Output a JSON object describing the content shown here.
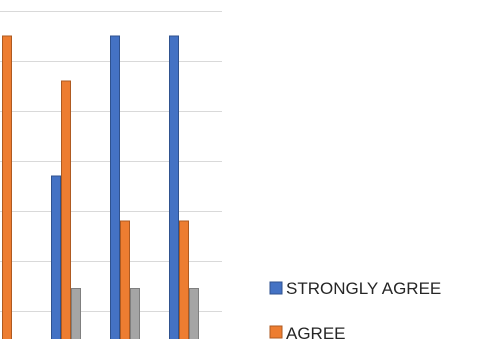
{
  "chart_data": {
    "type": "bar",
    "categories": [
      "",
      "",
      "",
      ""
    ],
    "series": [
      {
        "name": "STRONGLY AGREE",
        "color": "#4472c4",
        "values": [
          null,
          27,
          55,
          55
        ]
      },
      {
        "name": "AGREE",
        "color": "#ed7d31",
        "values": [
          55,
          46,
          18,
          18
        ]
      },
      {
        "name": "",
        "color": "#a5a5a5",
        "values": [
          null,
          4.5,
          4.5,
          4.5
        ]
      }
    ],
    "ylim": [
      0,
      60
    ],
    "grid": true,
    "legend_position": "right"
  }
}
